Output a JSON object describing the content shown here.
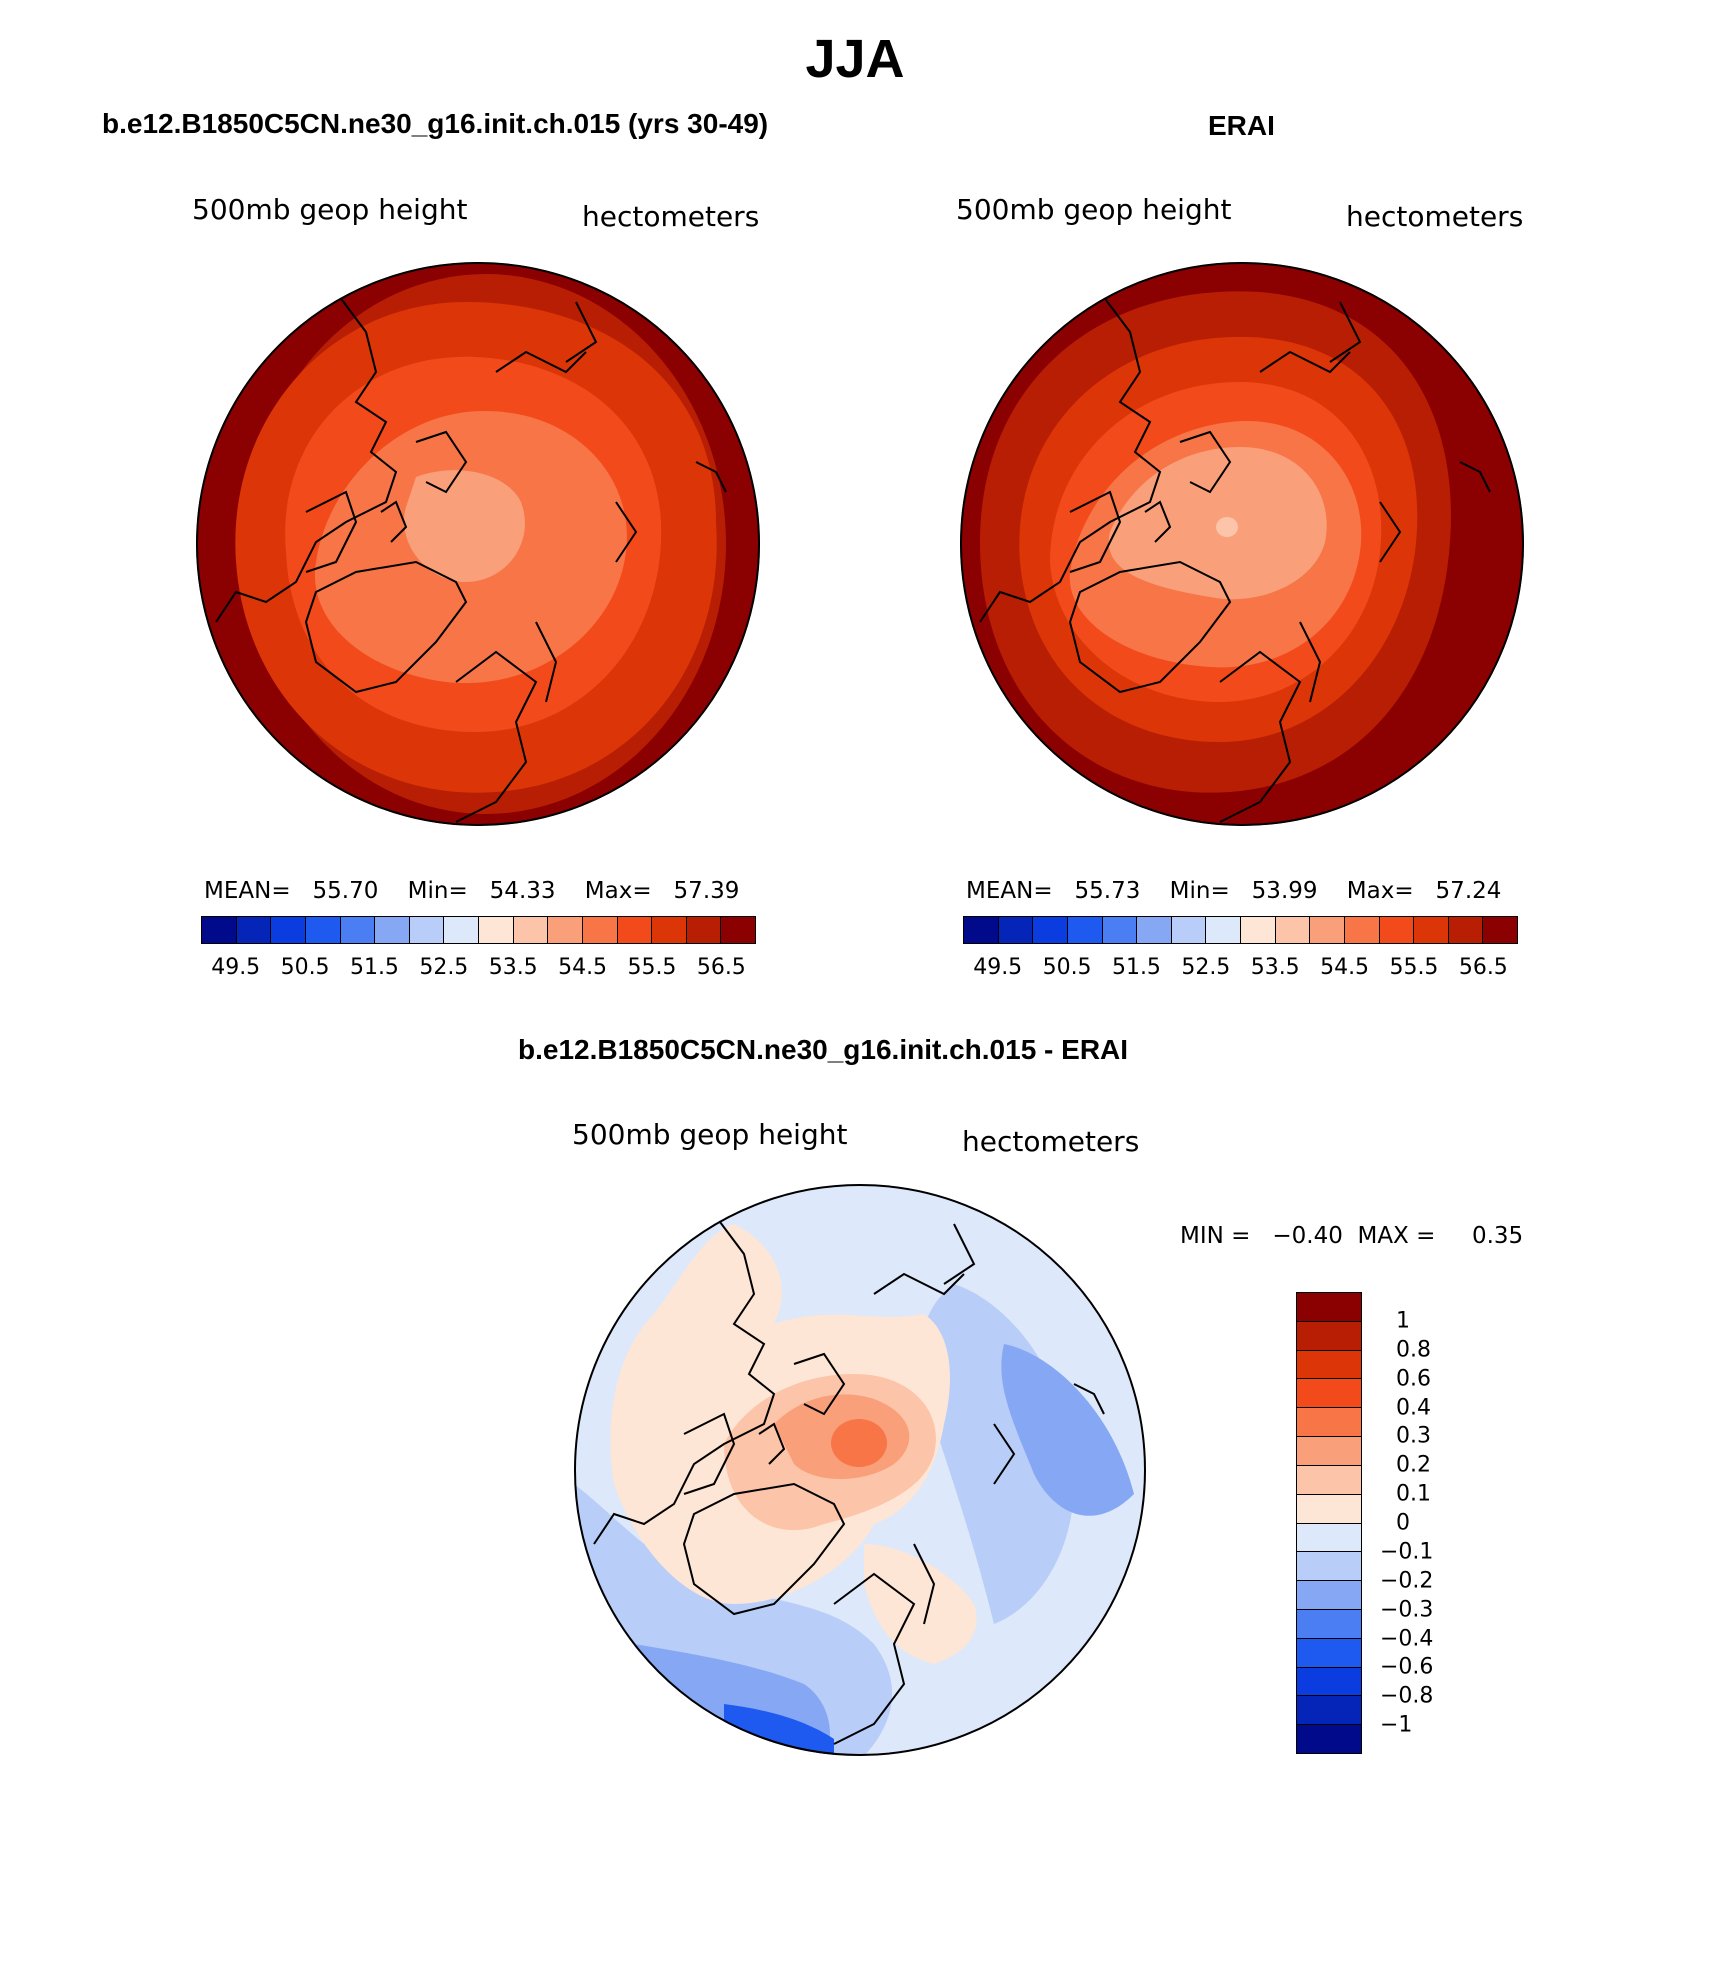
{
  "title": "JJA",
  "panels": [
    {
      "title": "b.e12.B1850C5CN.ne30_g16.init.ch.015 (yrs 30-49)",
      "variable": "500mb  geop  height",
      "units": "hectometers",
      "stats": {
        "mean_label": "MEAN=",
        "mean": "55.70",
        "min_label": "Min=",
        "min": "54.33",
        "max_label": "Max=",
        "max": "57.39"
      },
      "colorbar_ticks": [
        "49.5",
        "50.5",
        "51.5",
        "52.5",
        "53.5",
        "54.5",
        "55.5",
        "56.5"
      ]
    },
    {
      "title": "ERAI",
      "variable": "500mb  geop  height",
      "units": "hectometers",
      "stats": {
        "mean_label": "MEAN=",
        "mean": "55.73",
        "min_label": "Min=",
        "min": "53.99",
        "max_label": "Max=",
        "max": "57.24"
      },
      "colorbar_ticks": [
        "49.5",
        "50.5",
        "51.5",
        "52.5",
        "53.5",
        "54.5",
        "55.5",
        "56.5"
      ]
    },
    {
      "title": "b.e12.B1850C5CN.ne30_g16.init.ch.015 - ERAI",
      "variable": "500mb  geop  height",
      "units": "hectometers",
      "minmax": {
        "min_label": "MIN =",
        "min": "−0.40",
        "max_label": "MAX =",
        "max": "0.35"
      },
      "colorbar_levels": [
        "1",
        "0.8",
        "0.6",
        "0.4",
        "0.3",
        "0.2",
        "0.1",
        "0",
        "−0.1",
        "−0.2",
        "−0.3",
        "−0.4",
        "−0.6",
        "−0.8",
        "−1"
      ]
    }
  ],
  "colors": {
    "abs_palette": [
      "#000a8a",
      "#0524b8",
      "#0a3ce0",
      "#1f5af0",
      "#4a7ef2",
      "#86a8f4",
      "#b8cdf7",
      "#dde8fb",
      "#fde6d6",
      "#fcc4a8",
      "#f9a07a",
      "#f77547",
      "#f24a1a",
      "#dc3508",
      "#b81e04",
      "#8b0000"
    ],
    "diff_palette_top_to_bottom": [
      "#8b0000",
      "#b81e04",
      "#dc3508",
      "#f24a1a",
      "#f77547",
      "#f9a07a",
      "#fcc4a8",
      "#fde6d6",
      "#dde8fb",
      "#b8cdf7",
      "#86a8f4",
      "#4a7ef2",
      "#1f5af0",
      "#0a3ce0",
      "#0524b8",
      "#000a8a"
    ]
  },
  "chart_data": [
    {
      "type": "heatmap",
      "projection": "north polar stereographic",
      "title": "b.e12.B1850C5CN.ne30_g16.init.ch.015 (yrs 30-49)",
      "variable": "500mb geop height",
      "units": "hectometers",
      "mean": 55.7,
      "min": 54.33,
      "max": 57.39,
      "contour_levels": [
        49.5,
        50.0,
        50.5,
        51.0,
        51.5,
        52.0,
        52.5,
        53.0,
        53.5,
        54.0,
        54.5,
        55.0,
        55.5,
        56.0,
        56.5
      ],
      "field_levels_from_center": [
        54.0,
        54.5,
        55.0,
        55.5,
        56.0,
        56.5
      ]
    },
    {
      "type": "heatmap",
      "projection": "north polar stereographic",
      "title": "ERAI",
      "variable": "500mb geop height",
      "units": "hectometers",
      "mean": 55.73,
      "min": 53.99,
      "max": 57.24,
      "contour_levels": [
        49.5,
        50.0,
        50.5,
        51.0,
        51.5,
        52.0,
        52.5,
        53.0,
        53.5,
        54.0,
        54.5,
        55.0,
        55.5,
        56.0,
        56.5
      ],
      "field_levels_from_center": [
        53.5,
        54.0,
        54.5,
        55.0,
        55.5,
        56.0,
        56.5
      ]
    },
    {
      "type": "heatmap",
      "projection": "north polar stereographic",
      "title": "b.e12.B1850C5CN.ne30_g16.init.ch.015 - ERAI",
      "variable": "500mb geop height",
      "units": "hectometers",
      "min": -0.4,
      "max": 0.35,
      "contour_levels": [
        -1,
        -0.8,
        -0.6,
        -0.4,
        -0.3,
        -0.2,
        -0.1,
        0,
        0.1,
        0.2,
        0.3,
        0.4,
        0.6,
        0.8,
        1
      ]
    }
  ]
}
